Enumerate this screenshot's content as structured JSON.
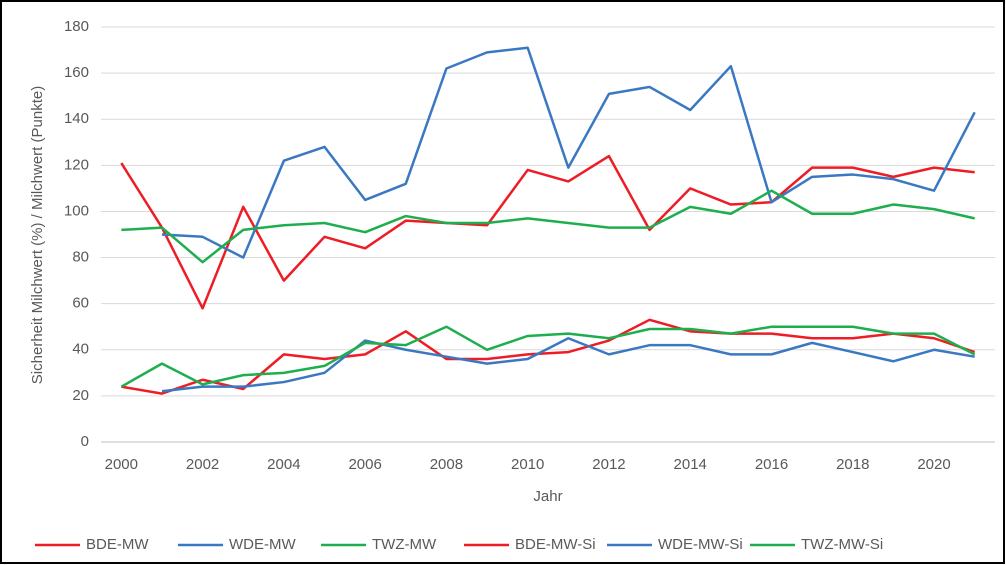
{
  "chart_data": {
    "type": "line",
    "y_label": "Sicherheit Milchwert (%) / Milchwert (Punkte)",
    "x_label": "Jahr",
    "x": [
      2000,
      2001,
      2002,
      2003,
      2004,
      2005,
      2006,
      2007,
      2008,
      2009,
      2010,
      2011,
      2012,
      2013,
      2014,
      2015,
      2016,
      2017,
      2018,
      2019,
      2020,
      2021
    ],
    "xlim": [
      1999.5,
      2021.5
    ],
    "xticks": [
      2000,
      2002,
      2004,
      2006,
      2008,
      2010,
      2012,
      2014,
      2016,
      2018,
      2020
    ],
    "ylim": [
      0,
      180
    ],
    "yticks": [
      0,
      20,
      40,
      60,
      80,
      100,
      120,
      140,
      160,
      180
    ],
    "grid": true,
    "legend": "bottom",
    "series": [
      {
        "name": "BDE-MW",
        "color": "#ee1c25",
        "values": [
          121,
          93,
          58,
          102,
          70,
          89,
          84,
          96,
          95,
          94,
          118,
          113,
          124,
          92,
          110,
          103,
          104,
          119,
          119,
          115,
          119,
          117
        ]
      },
      {
        "name": "WDE-MW",
        "color": "#3b78c2",
        "values": [
          null,
          90,
          89,
          80,
          122,
          128,
          105,
          112,
          162,
          169,
          171,
          119,
          151,
          154,
          144,
          163,
          104,
          115,
          116,
          114,
          109,
          143
        ]
      },
      {
        "name": "TWZ-MW",
        "color": "#1eae4e",
        "values": [
          92,
          93,
          78,
          92,
          94,
          95,
          91,
          98,
          95,
          95,
          97,
          95,
          93,
          93,
          102,
          99,
          109,
          99,
          99,
          103,
          101,
          97
        ]
      },
      {
        "name": "BDE-MW-Si",
        "color": "#ee1c25",
        "values": [
          24,
          21,
          27,
          23,
          38,
          36,
          38,
          48,
          36,
          36,
          38,
          39,
          44,
          53,
          48,
          47,
          47,
          45,
          45,
          47,
          45,
          39
        ]
      },
      {
        "name": "WDE-MW-Si",
        "color": "#3b78c2",
        "values": [
          null,
          22,
          24,
          24,
          26,
          30,
          44,
          40,
          37,
          34,
          36,
          45,
          38,
          42,
          42,
          38,
          38,
          43,
          39,
          35,
          40,
          37
        ]
      },
      {
        "name": "TWZ-MW-Si",
        "color": "#1eae4e",
        "values": [
          24,
          34,
          25,
          29,
          30,
          33,
          43,
          42,
          50,
          40,
          46,
          47,
          45,
          49,
          49,
          47,
          50,
          50,
          50,
          47,
          47,
          38
        ]
      }
    ]
  }
}
